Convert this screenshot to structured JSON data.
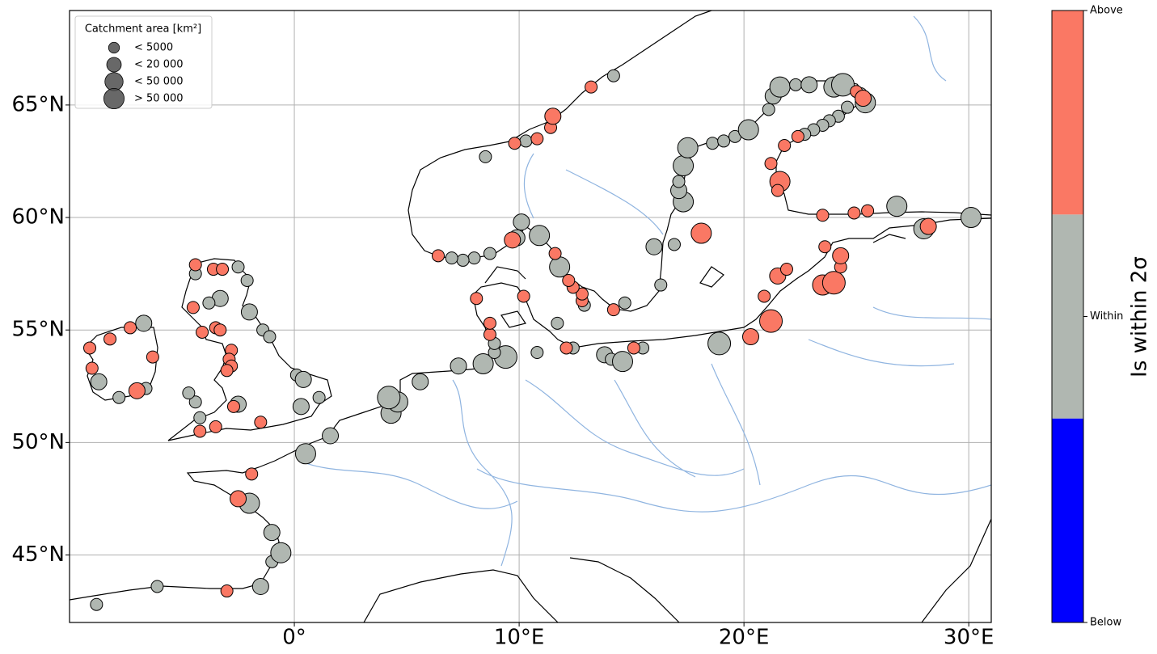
{
  "chart_data": {
    "type": "scatter",
    "xlim": [
      -10,
      31
    ],
    "ylim": [
      42,
      69.2
    ],
    "xticks": [
      {
        "value": 0,
        "label": "0°"
      },
      {
        "value": 10,
        "label": "10°E"
      },
      {
        "value": 20,
        "label": "20°E"
      },
      {
        "value": 30,
        "label": "30°E"
      }
    ],
    "yticks": [
      {
        "value": 45,
        "label": "45°N"
      },
      {
        "value": 50,
        "label": "50°N"
      },
      {
        "value": 55,
        "label": "55°N"
      },
      {
        "value": 60,
        "label": "60°N"
      },
      {
        "value": 65,
        "label": "65°N"
      }
    ],
    "grid": true,
    "size_legend": {
      "title": "Catchment area [km²]",
      "labels": [
        "< 5000",
        "< 20 000",
        "< 50 000",
        "> 50 000"
      ],
      "color": "#4d4d4d",
      "corner": "upper left"
    },
    "colorbar_label": "Is within 2σ",
    "series": [
      {
        "name": "Below",
        "color": "#0000ff",
        "x": [],
        "y": [],
        "size": []
      },
      {
        "name": "Within",
        "color": "#b0b7b1",
        "x": [
          -8.8,
          -6.1,
          -1.5,
          -1.0,
          -0.6,
          -1.0,
          -2.0,
          0.5,
          1.6,
          4.3,
          4.6,
          4.2,
          5.6,
          7.3,
          8.4,
          9.4,
          8.9,
          8.9,
          10.8,
          11.7,
          12.4,
          12.9,
          11.8,
          10.9,
          10.1,
          9.9,
          8.7,
          8.0,
          7.5,
          7.0,
          8.5,
          10.3,
          14.2,
          14.7,
          13.8,
          14.1,
          14.6,
          15.5,
          16.0,
          16.9,
          16.3,
          18.9,
          28.0,
          30.1,
          26.8,
          17.3,
          17.1,
          17.1,
          17.3,
          17.5,
          18.6,
          19.1,
          19.6,
          20.2,
          21.1,
          21.3,
          21.6,
          22.3,
          22.9,
          24.0,
          24.4,
          25.2,
          25.4,
          24.6,
          24.2,
          23.8,
          23.5,
          23.1,
          22.7,
          -4.4,
          -2.5,
          -2.1,
          -3.3,
          -3.8,
          -2.0,
          -1.4,
          -1.1,
          0.1,
          0.4,
          1.1,
          0.3,
          -2.5,
          -4.2,
          -4.4,
          -4.7,
          -6.6,
          -7.8,
          -8.7,
          -6.7
        ],
        "y": [
          42.8,
          43.6,
          43.6,
          44.7,
          45.1,
          46.0,
          47.3,
          49.5,
          50.3,
          51.3,
          51.8,
          52.0,
          52.7,
          53.4,
          53.5,
          53.8,
          54.0,
          54.4,
          54.0,
          55.3,
          54.2,
          56.1,
          57.8,
          59.2,
          59.8,
          59.1,
          58.4,
          58.2,
          58.1,
          58.2,
          62.7,
          63.4,
          66.3,
          56.2,
          53.9,
          53.7,
          53.6,
          54.2,
          58.7,
          58.8,
          57.0,
          54.4,
          59.5,
          60.0,
          60.5,
          60.7,
          61.2,
          61.6,
          62.3,
          63.1,
          63.3,
          63.4,
          63.6,
          63.9,
          64.8,
          65.4,
          65.8,
          65.9,
          65.9,
          65.8,
          65.9,
          65.5,
          65.1,
          64.9,
          64.5,
          64.3,
          64.1,
          63.9,
          63.7,
          57.5,
          57.8,
          57.2,
          56.4,
          56.2,
          55.8,
          55.0,
          54.7,
          53.0,
          52.8,
          52.0,
          51.6,
          51.7,
          51.1,
          51.8,
          52.2,
          52.4,
          52.0,
          52.7,
          55.3
        ],
        "size": [
          0,
          0,
          1,
          0,
          2,
          1,
          2,
          2,
          1,
          2,
          2,
          3,
          1,
          1,
          2,
          3,
          0,
          0,
          0,
          0,
          0,
          0,
          2,
          2,
          1,
          1,
          0,
          0,
          0,
          0,
          0,
          0,
          0,
          0,
          1,
          0,
          2,
          0,
          1,
          0,
          0,
          3,
          2,
          2,
          2,
          2,
          1,
          0,
          2,
          2,
          0,
          0,
          0,
          2,
          0,
          1,
          2,
          0,
          1,
          2,
          3,
          0,
          2,
          0,
          0,
          0,
          0,
          0,
          0,
          0,
          0,
          0,
          1,
          0,
          1,
          0,
          0,
          0,
          1,
          0,
          1,
          1,
          0,
          0,
          0,
          0,
          0,
          1,
          1
        ]
      },
      {
        "name": "Above",
        "color": "#fa7864",
        "x": [
          -3.0,
          -2.5,
          -1.9,
          8.7,
          8.7,
          8.1,
          10.2,
          12.1,
          12.8,
          12.8,
          12.4,
          12.2,
          11.6,
          9.7,
          6.4,
          9.8,
          10.8,
          11.4,
          11.5,
          13.2,
          14.2,
          15.1,
          18.1,
          20.3,
          21.2,
          20.9,
          21.5,
          21.9,
          23.5,
          24.0,
          24.3,
          24.3,
          23.6,
          28.2,
          25.5,
          24.9,
          23.5,
          25.0,
          25.3,
          22.4,
          21.8,
          21.2,
          21.6,
          21.5,
          -4.4,
          -3.6,
          -3.2,
          -4.5,
          -3.5,
          -3.3,
          -4.1,
          -2.8,
          -2.9,
          -2.8,
          -3.0,
          -2.7,
          -1.5,
          -3.5,
          -4.2,
          -7.0,
          -9.0,
          -9.1,
          -8.2,
          -7.3,
          -6.3
        ],
        "y": [
          43.4,
          47.5,
          48.6,
          54.8,
          55.3,
          56.4,
          56.5,
          54.2,
          56.3,
          56.6,
          56.9,
          57.2,
          58.4,
          59.0,
          58.3,
          63.3,
          63.5,
          64.0,
          64.5,
          65.8,
          55.9,
          54.2,
          59.3,
          54.7,
          55.4,
          56.5,
          57.4,
          57.7,
          57.0,
          57.1,
          57.8,
          58.3,
          58.7,
          59.6,
          60.3,
          60.2,
          60.1,
          65.6,
          65.3,
          63.6,
          63.2,
          62.4,
          61.6,
          61.2,
          57.9,
          57.7,
          57.7,
          56.0,
          55.1,
          55.0,
          54.9,
          54.1,
          53.7,
          53.4,
          53.2,
          51.6,
          50.9,
          50.7,
          50.5,
          52.3,
          53.3,
          54.2,
          54.6,
          55.1,
          53.8
        ],
        "size": [
          0,
          1,
          0,
          0,
          0,
          0,
          0,
          0,
          0,
          0,
          0,
          0,
          0,
          1,
          0,
          0,
          0,
          0,
          1,
          0,
          0,
          0,
          2,
          1,
          3,
          0,
          1,
          0,
          2,
          3,
          0,
          1,
          0,
          1,
          0,
          0,
          0,
          0,
          1,
          0,
          0,
          0,
          2,
          0,
          0,
          0,
          0,
          0,
          0,
          0,
          0,
          0,
          0,
          0,
          0,
          0,
          0,
          0,
          0,
          1,
          0,
          0,
          0,
          0,
          0
        ]
      }
    ]
  }
}
